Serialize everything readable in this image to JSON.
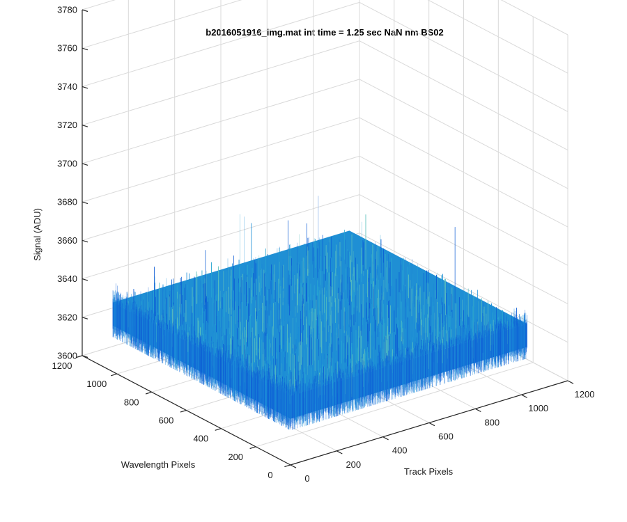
{
  "chart_data": {
    "type": "surface",
    "title": "b2016051916_img.mat int time = 1.25 sec  NaN nm BS02",
    "xlabel": "Track Pixels",
    "ylabel": "Wavelength Pixels",
    "zlabel": "Signal (ADU)",
    "x_ticks": [
      "0",
      "200",
      "400",
      "600",
      "800",
      "1000",
      "1200"
    ],
    "y_ticks": [
      "0",
      "200",
      "400",
      "600",
      "800",
      "1000",
      "1200"
    ],
    "z_ticks": [
      "3600",
      "3620",
      "3640",
      "3660",
      "3680",
      "3700",
      "3720",
      "3740",
      "3760",
      "3780"
    ],
    "xlim": [
      0,
      1200
    ],
    "ylim": [
      0,
      1200
    ],
    "zlim": [
      3600,
      3780
    ],
    "grid": true,
    "surface_extent": {
      "x": [
        0,
        1024
      ],
      "y": [
        0,
        1024
      ]
    },
    "surface_level": 3630,
    "surface_noise_range": [
      3618,
      3722
    ],
    "colormap": [
      "#0f5fd6",
      "#1c8ed8",
      "#2aa6d2",
      "#5cbfbe"
    ]
  }
}
